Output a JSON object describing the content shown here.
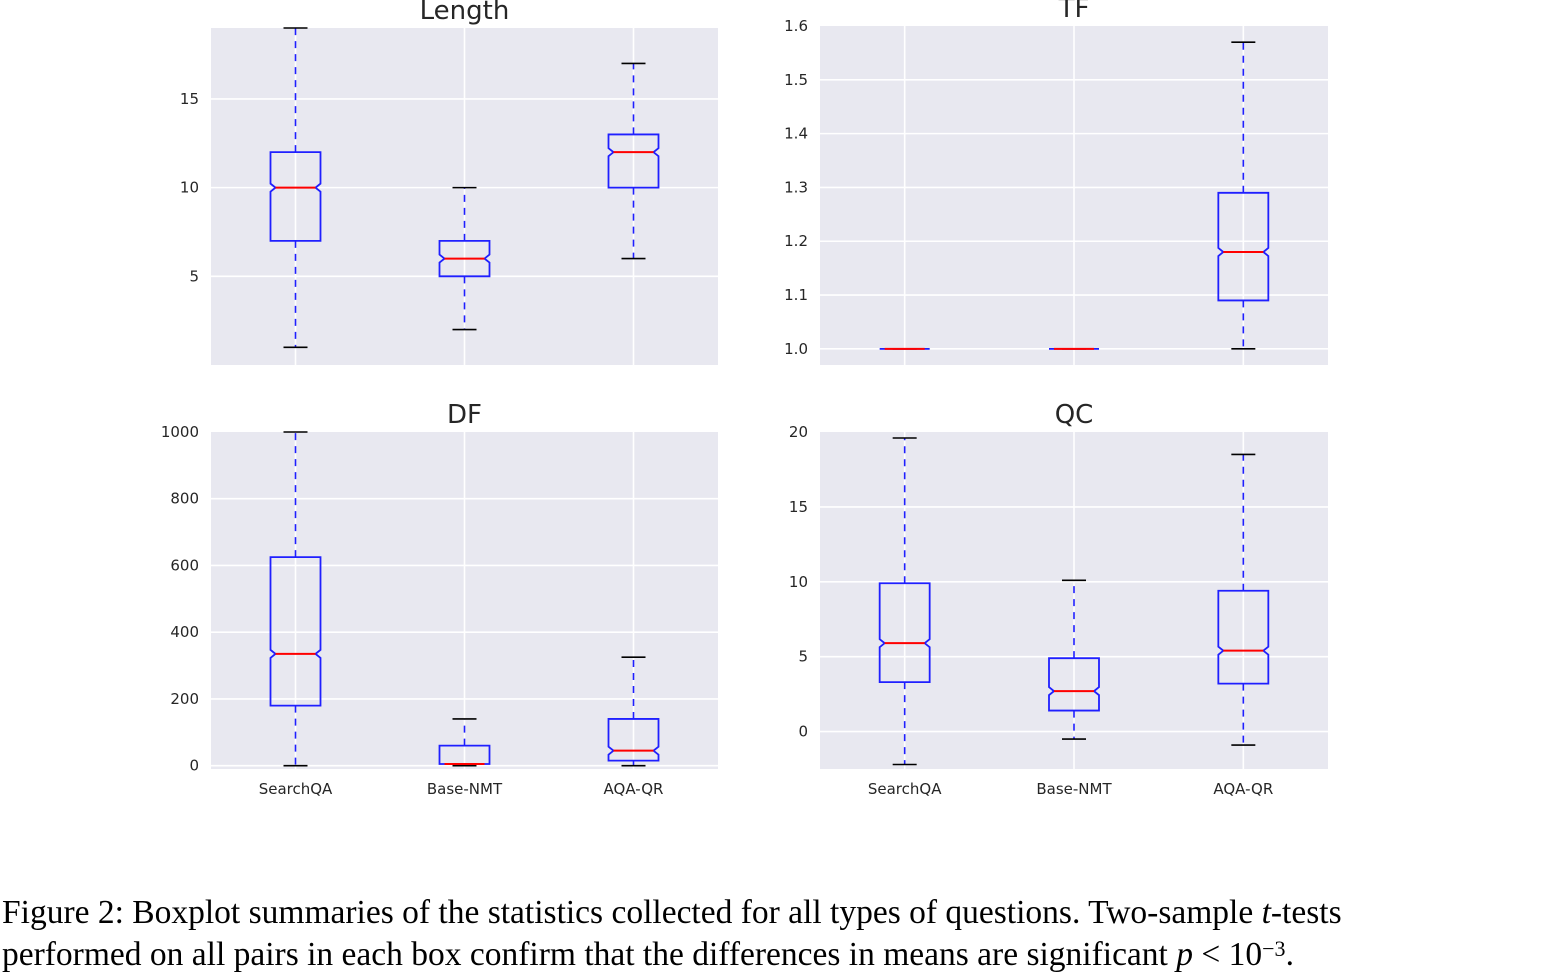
{
  "chart_data": [
    {
      "type": "boxplot",
      "title": "Length",
      "categories": [
        "SearchQA",
        "Base-NMT",
        "AQA-QR"
      ],
      "ylim": [
        0,
        19
      ],
      "yticks": [
        5,
        10,
        15
      ],
      "ytick_labels": [
        "5",
        "10",
        "15"
      ],
      "show_xtick_labels": false,
      "boxes": [
        {
          "whislo": 1,
          "q1": 7,
          "med": 10,
          "q3": 12,
          "whishi": 19
        },
        {
          "whislo": 2,
          "q1": 5,
          "med": 6,
          "q3": 7,
          "whishi": 10
        },
        {
          "whislo": 6,
          "q1": 10,
          "med": 12,
          "q3": 13,
          "whishi": 17
        }
      ]
    },
    {
      "type": "boxplot",
      "title": "TF",
      "categories": [
        "SearchQA",
        "Base-NMT",
        "AQA-QR"
      ],
      "ylim": [
        0.97,
        1.6
      ],
      "yticks": [
        1.0,
        1.1,
        1.2,
        1.3,
        1.4,
        1.5,
        1.6
      ],
      "ytick_labels": [
        "1.0",
        "1.1",
        "1.2",
        "1.3",
        "1.4",
        "1.5",
        "1.6"
      ],
      "show_xtick_labels": false,
      "boxes": [
        {
          "whislo": 1.0,
          "q1": 1.0,
          "med": 1.0,
          "q3": 1.0,
          "whishi": 1.0
        },
        {
          "whislo": 1.0,
          "q1": 1.0,
          "med": 1.0,
          "q3": 1.0,
          "whishi": 1.0
        },
        {
          "whislo": 1.0,
          "q1": 1.09,
          "med": 1.18,
          "q3": 1.29,
          "whishi": 1.57
        }
      ]
    },
    {
      "type": "boxplot",
      "title": "DF",
      "categories": [
        "SearchQA",
        "Base-NMT",
        "AQA-QR"
      ],
      "ylim": [
        -10,
        1000
      ],
      "yticks": [
        0,
        200,
        400,
        600,
        800,
        1000
      ],
      "ytick_labels": [
        "0",
        "200",
        "400",
        "600",
        "800",
        "1000"
      ],
      "show_xtick_labels": true,
      "boxes": [
        {
          "whislo": 0,
          "q1": 180,
          "med": 335,
          "q3": 625,
          "whishi": 1000
        },
        {
          "whislo": 0,
          "q1": 5,
          "med": 5,
          "q3": 60,
          "whishi": 140
        },
        {
          "whislo": 0,
          "q1": 15,
          "med": 45,
          "q3": 140,
          "whishi": 325
        }
      ]
    },
    {
      "type": "boxplot",
      "title": "QC",
      "categories": [
        "SearchQA",
        "Base-NMT",
        "AQA-QR"
      ],
      "ylim": [
        -2.5,
        20
      ],
      "yticks": [
        0,
        5,
        10,
        15,
        20
      ],
      "ytick_labels": [
        "0",
        "5",
        "10",
        "15",
        "20"
      ],
      "show_xtick_labels": true,
      "boxes": [
        {
          "whislo": -2.2,
          "q1": 3.3,
          "med": 5.9,
          "q3": 9.9,
          "whishi": 19.6
        },
        {
          "whislo": -0.5,
          "q1": 1.4,
          "med": 2.7,
          "q3": 4.9,
          "whishi": 10.1
        },
        {
          "whislo": -0.9,
          "q1": 3.2,
          "med": 5.4,
          "q3": 9.4,
          "whishi": 18.5
        }
      ]
    }
  ],
  "caption": {
    "line1_prefix": "Figure 2: Boxplot summaries of the statistics collected for all types of questions. Two-sample ",
    "line1_italic": "t",
    "line1_suffix": "-tests",
    "line2_prefix": "performed on all pairs in each box confirm that the differences in means are significant ",
    "p_symbol": "p",
    "lt_symbol": " < 10",
    "exponent": "−3",
    "line2_end": "."
  }
}
